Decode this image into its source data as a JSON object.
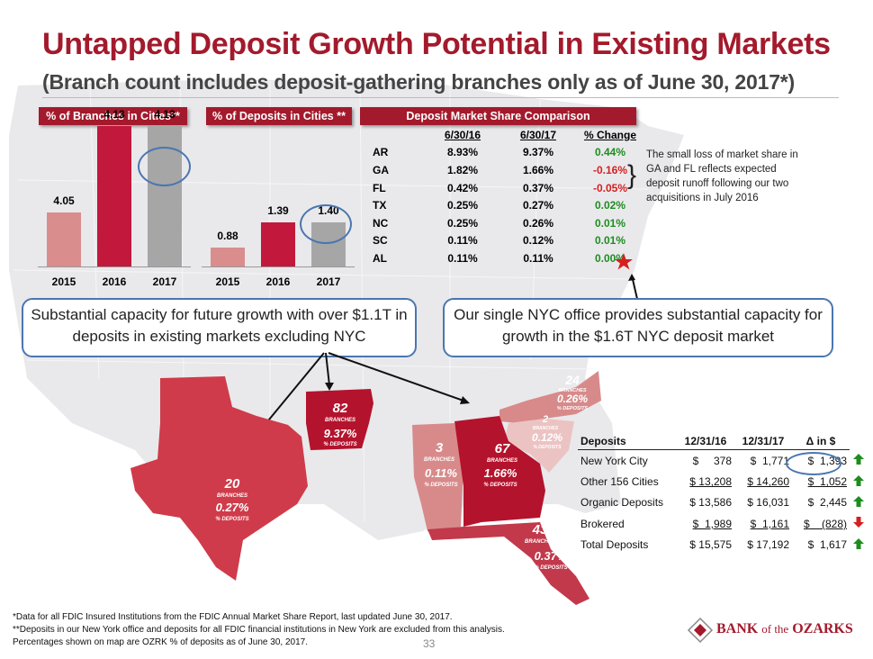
{
  "title": "Untapped Deposit Growth Potential in Existing Markets",
  "subtitle": "(Branch count includes deposit-gathering branches only as of June 30, 2017*)",
  "pct_branches": {
    "header": "% of Branches in Cities**",
    "years": [
      "2015",
      "2016",
      "2017"
    ],
    "values": [
      "4.05",
      "4.13",
      "4.13"
    ],
    "colors": [
      "#d98d8d",
      "#c2183c",
      "#a6a6a6"
    ]
  },
  "pct_deposits": {
    "header": "% of Deposits in Cities **",
    "years": [
      "2015",
      "2016",
      "2017"
    ],
    "values": [
      "0.88",
      "1.39",
      "1.40"
    ],
    "colors": [
      "#d98d8d",
      "#c2183c",
      "#a6a6a6"
    ]
  },
  "market_share": {
    "header": "Deposit Market Share Comparison",
    "columns": [
      "6/30/16",
      "6/30/17",
      "% Change"
    ],
    "rows": [
      {
        "state": "AR",
        "v16": "8.93%",
        "v17": "9.37%",
        "chg": "0.44%",
        "dir": "up"
      },
      {
        "state": "GA",
        "v16": "1.82%",
        "v17": "1.66%",
        "chg": "-0.16%",
        "dir": "down"
      },
      {
        "state": "FL",
        "v16": "0.42%",
        "v17": "0.37%",
        "chg": "-0.05%",
        "dir": "down"
      },
      {
        "state": "TX",
        "v16": "0.25%",
        "v17": "0.27%",
        "chg": "0.02%",
        "dir": "up"
      },
      {
        "state": "NC",
        "v16": "0.25%",
        "v17": "0.26%",
        "chg": "0.01%",
        "dir": "up"
      },
      {
        "state": "SC",
        "v16": "0.11%",
        "v17": "0.12%",
        "chg": "0.01%",
        "dir": "up"
      },
      {
        "state": "AL",
        "v16": "0.11%",
        "v17": "0.11%",
        "chg": "0.00%",
        "dir": "up"
      }
    ],
    "note": "The small loss of market share in GA and FL reflects expected deposit runoff following our two acquisitions in July 2016"
  },
  "callouts": {
    "left": "Substantial capacity for future growth with over $1.1T in deposits in existing markets excluding NYC",
    "right": "Our single NYC office provides substantial capacity for growth in the $1.6T NYC deposit market"
  },
  "states": {
    "ar": {
      "count": "82",
      "label": "BRANCHES",
      "pct": "9.37%",
      "pct_label": "% DEPOSITS"
    },
    "tx": {
      "count": "20",
      "label": "BRANCHES",
      "pct": "0.27%",
      "pct_label": "% DEPOSITS"
    },
    "al": {
      "count": "3",
      "label": "BRANCHES",
      "pct": "0.11%",
      "pct_label": "% DEPOSITS"
    },
    "ga": {
      "count": "67",
      "label": "BRANCHES",
      "pct": "1.66%",
      "pct_label": "% DEPOSITS"
    },
    "nc": {
      "count": "24",
      "label": "BRANCHES",
      "pct": "0.26%",
      "pct_label": "% DEPOSITS"
    },
    "sc": {
      "count": "2",
      "label": "BRANCHES",
      "pct": "0.12%",
      "pct_label": "% DEPOSITS"
    },
    "fl": {
      "count": "43",
      "label": "BRANCHES",
      "pct": "0.37%",
      "pct_label": "% DEPOSITS"
    }
  },
  "deposits": {
    "headers": [
      "Deposits",
      "12/31/16",
      "12/31/17",
      "Δ in $"
    ],
    "rows": [
      {
        "name": "New York City",
        "c1": "$     378",
        "c2": "$  1,771",
        "c3": "$  1,393",
        "u": false,
        "dir": "up"
      },
      {
        "name": "Other 156 Cities",
        "c1": "$ 13,208",
        "c2": "$ 14,260",
        "c3": "$  1,052",
        "u": true,
        "dir": "up"
      },
      {
        "name": "Organic Deposits",
        "c1": "$ 13,586",
        "c2": "$ 16,031",
        "c3": "$  2,445",
        "u": false,
        "dir": "up"
      },
      {
        "name": "Brokered",
        "c1": "$  1,989",
        "c2": "$  1,161",
        "c3": "$    (828)",
        "u": true,
        "dir": "down"
      },
      {
        "name": "Total Deposits",
        "c1": "$ 15,575",
        "c2": "$ 17,192",
        "c3": "$  1,617",
        "u": false,
        "dir": "up"
      }
    ]
  },
  "footnotes": [
    "*Data for all FDIC Insured Institutions from the FDIC Annual Market Share Report, last updated June 30, 2017.",
    "**Deposits in our New York office and deposits for all FDIC financial institutions in New York are excluded from this analysis.",
    " Percentages shown on map are OZRK % of deposits as of June 30, 2017."
  ],
  "page_number": "33",
  "logo": {
    "bank": "BANK",
    "of": "of the",
    "name": "OZARKS"
  },
  "colors": {
    "brand": "#a31a2c",
    "up": "#1e8c1e",
    "down": "#d42020",
    "highlight": "#4a76b0"
  }
}
